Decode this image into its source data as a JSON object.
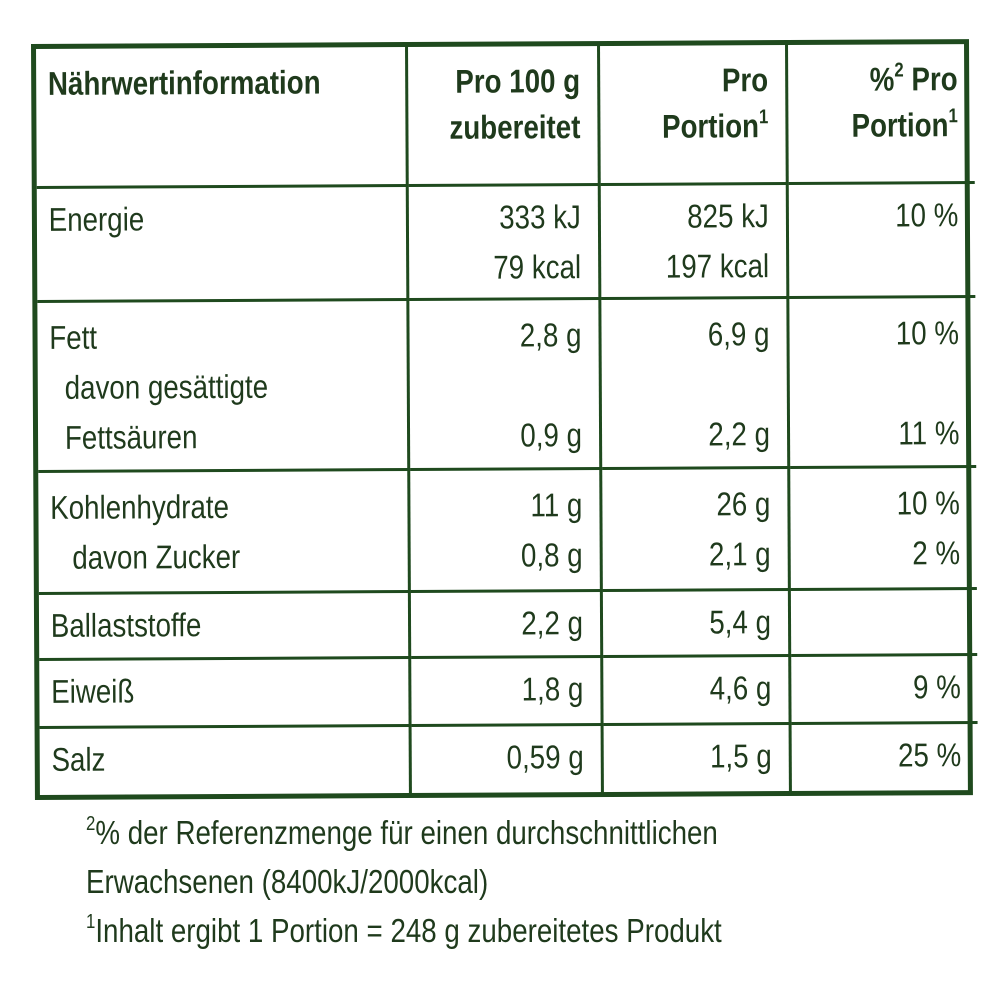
{
  "header": {
    "col1": "Nährwertinformation",
    "col2_line1": "Pro 100 g",
    "col2_line2": "zubereitet",
    "col3_line1": "Pro",
    "col3_line2": "Portion",
    "col3_sup": "1",
    "col4_prefix": "%",
    "col4_sup": "2",
    "col4_line1_rest": " Pro",
    "col4_line2": "Portion",
    "col4_line2_sup": "1"
  },
  "rows": {
    "energie": {
      "label": "Energie",
      "p100_a": "333 kJ",
      "p100_b": "79 kcal",
      "por_a": "825 kJ",
      "por_b": "197 kcal",
      "pct": "10 %"
    },
    "fett": {
      "label": "Fett",
      "sub1": "davon gesättigte",
      "sub2": "Fettsäuren",
      "p100": "2,8 g",
      "p100_sub": "0,9 g",
      "por": "6,9 g",
      "por_sub": "2,2 g",
      "pct": "10 %",
      "pct_sub": "11 %"
    },
    "kh": {
      "label": "Kohlenhydrate",
      "sub": "davon Zucker",
      "p100": "11 g",
      "p100_sub": "0,8 g",
      "por": "26 g",
      "por_sub": "2,1 g",
      "pct": "10 %",
      "pct_sub": "2 %"
    },
    "ballast": {
      "label": "Ballaststoffe",
      "p100": "2,2 g",
      "por": "5,4 g",
      "pct": ""
    },
    "eiweiss": {
      "label": "Eiweiß",
      "p100": "1,8 g",
      "por": "4,6 g",
      "pct": "9 %"
    },
    "salz": {
      "label": "Salz",
      "p100": "0,59 g",
      "por": "1,5 g",
      "pct": "25 %"
    }
  },
  "footnotes": {
    "fn2_sup": "2",
    "fn2_line1": "% der Referenzmenge für einen durchschnittlichen",
    "fn2_line2": "Erwachsenen (8400kJ/2000kcal)",
    "fn1_sup": "1",
    "fn1_line": "Inhalt ergibt 1 Portion = 248 g zubereitetes Produkt"
  }
}
